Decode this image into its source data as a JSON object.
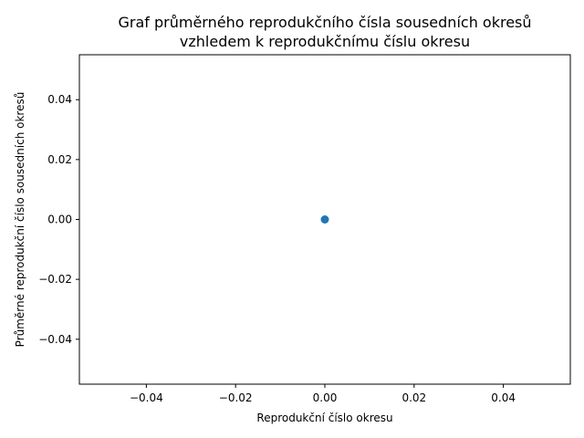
{
  "chart_data": {
    "type": "scatter",
    "title": "Graf průměrného reprodukčního čísla sousedních okresů",
    "subtitle": "vzhledem k reprodukčnímu číslu okresu",
    "xlabel": "Reprodukční číslo okresu",
    "ylabel": "Průměrné reprodukční číslo sousedních okresů",
    "xlim": [
      -0.055,
      0.055
    ],
    "ylim": [
      -0.055,
      0.055
    ],
    "x_ticks": [
      "−0.04",
      "−0.02",
      "0.00",
      "0.02",
      "0.04"
    ],
    "y_ticks": [
      "−0.04",
      "−0.02",
      "0.00",
      "0.02",
      "0.04"
    ],
    "x_tick_values": [
      -0.04,
      -0.02,
      0.0,
      0.02,
      0.04
    ],
    "y_tick_values": [
      -0.04,
      -0.02,
      0.0,
      0.02,
      0.04
    ],
    "points": [
      {
        "x": 0.0,
        "y": 0.0
      }
    ],
    "grid": false,
    "marker_color": "#1f77b4"
  }
}
